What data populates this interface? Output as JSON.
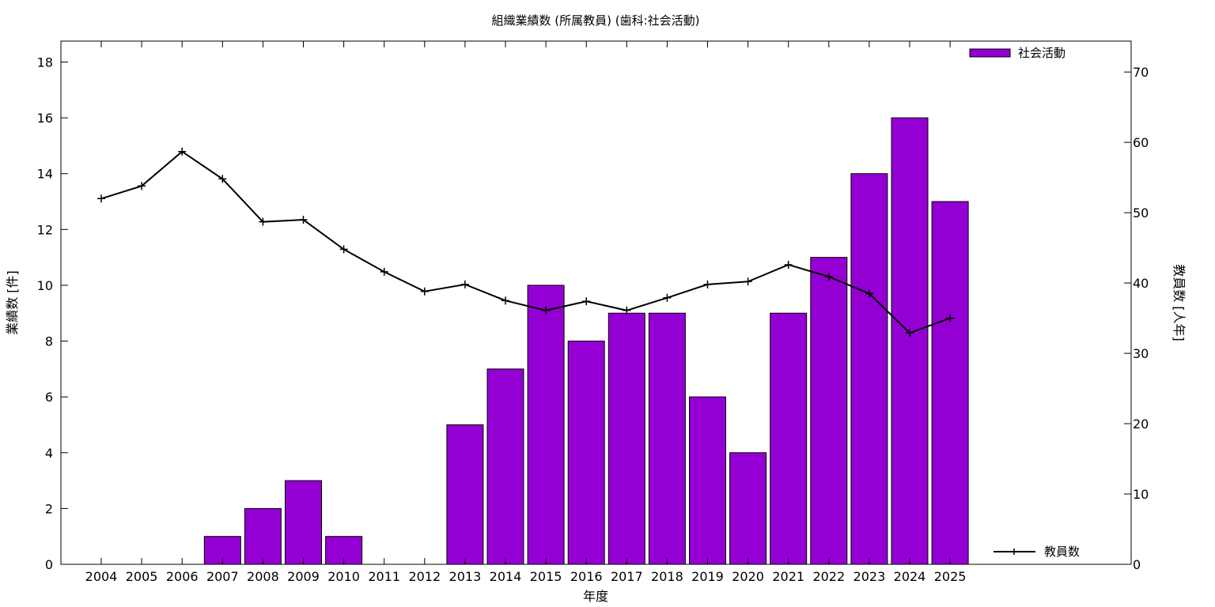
{
  "chart_data": {
    "type": "bar",
    "title": "組織業績数 (所属教員) (歯科:社会活動)",
    "xlabel": "年度",
    "ylabel": "業績数 [件]",
    "y2label": "教員数 [人年]",
    "categories": [
      "2004",
      "2005",
      "2006",
      "2007",
      "2008",
      "2009",
      "2010",
      "2011",
      "2012",
      "2013",
      "2014",
      "2015",
      "2016",
      "2017",
      "2018",
      "2019",
      "2020",
      "2021",
      "2022",
      "2023",
      "2024",
      "2025"
    ],
    "ylim": [
      0,
      18.75
    ],
    "y2lim": [
      0,
      74.4
    ],
    "yticks": [
      0,
      2,
      4,
      6,
      8,
      10,
      12,
      14,
      16,
      18
    ],
    "y2ticks": [
      0,
      10,
      20,
      30,
      40,
      50,
      60,
      70
    ],
    "grid": false,
    "legend_placement": "top-right / bottom-right",
    "series": [
      {
        "name": "社会活動",
        "type": "bar",
        "axis": "left",
        "color": "#9400d3",
        "values": [
          0,
          0,
          0,
          1,
          2,
          3,
          1,
          0,
          0,
          5,
          7,
          10,
          8,
          9,
          9,
          6,
          4,
          9,
          11,
          14,
          16,
          13
        ]
      },
      {
        "name": "教員数",
        "type": "line",
        "axis": "right",
        "color": "#000000",
        "values": [
          52.0,
          53.8,
          58.7,
          54.8,
          48.7,
          49.0,
          44.8,
          41.6,
          38.8,
          39.8,
          37.5,
          36.1,
          37.4,
          36.1,
          37.9,
          39.8,
          40.2,
          42.6,
          40.9,
          38.5,
          32.9,
          35.0
        ]
      }
    ]
  }
}
